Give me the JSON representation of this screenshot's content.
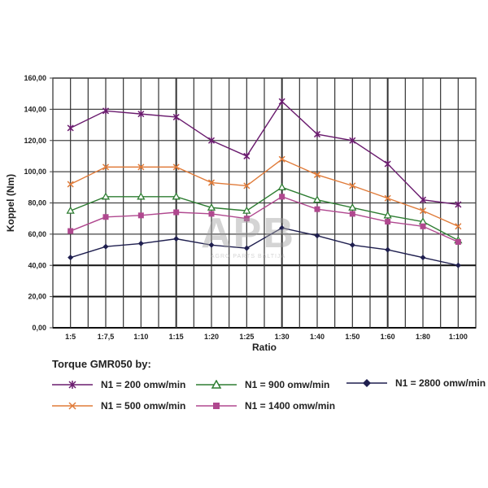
{
  "chart_data": {
    "type": "line",
    "title": "Torque GMR050 by:",
    "xlabel": "Ratio",
    "ylabel": "Koppel (Nm)",
    "ylim": [
      0,
      160
    ],
    "yticks": [
      "0,00",
      "20,00",
      "40,00",
      "60,00",
      "80,00",
      "100,00",
      "120,00",
      "140,00",
      "160,00"
    ],
    "categories": [
      "1:5",
      "1:7,5",
      "1:10",
      "1:15",
      "1:20",
      "1:25",
      "1:30",
      "1:40",
      "1:50",
      "1:60",
      "1:80",
      "1:100"
    ],
    "grid": true,
    "legend_position": "bottom",
    "series": [
      {
        "name": "N1 = 200 omw/min",
        "color": "#6a1b6e",
        "marker": "asterisk",
        "values": [
          128,
          139,
          137,
          135,
          120,
          110,
          145,
          124,
          120,
          105,
          82,
          79
        ]
      },
      {
        "name": "N1 = 500 omw/min",
        "color": "#e07b39",
        "marker": "x",
        "values": [
          92,
          103,
          103,
          103,
          93,
          91,
          108,
          98,
          91,
          83,
          75,
          65
        ]
      },
      {
        "name": "N1 = 900 omw/min",
        "color": "#2e7d32",
        "marker": "triangle",
        "values": [
          75,
          84,
          84,
          84,
          77,
          75,
          90,
          82,
          77,
          72,
          68,
          56
        ]
      },
      {
        "name": "N1 = 1400 omw/min",
        "color": "#b0488f",
        "marker": "square",
        "values": [
          62,
          71,
          72,
          74,
          73,
          70,
          84,
          76,
          73,
          68,
          65,
          55
        ]
      },
      {
        "name": "N1 = 2800 omw/min",
        "color": "#1f1f4f",
        "marker": "diamond",
        "values": [
          45,
          52,
          54,
          57,
          53,
          51,
          64,
          59,
          53,
          50,
          45,
          40
        ]
      }
    ]
  },
  "watermark": {
    "logo": "APB",
    "text": "AGRO PARTS BALTIJA"
  }
}
